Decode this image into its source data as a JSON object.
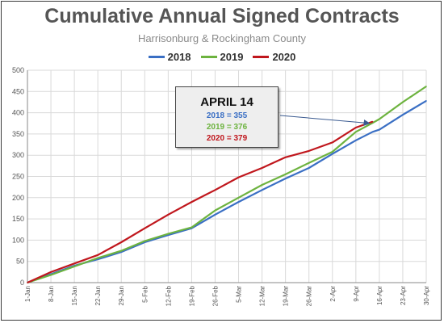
{
  "title": "Cumulative Annual Signed Contracts",
  "subtitle": "Harrisonburg & Rockingham County",
  "legend": [
    {
      "name": "2018",
      "color": "#3a6fc4"
    },
    {
      "name": "2019",
      "color": "#6db33f"
    },
    {
      "name": "2020",
      "color": "#c0171d"
    }
  ],
  "callout": {
    "title": "APRIL 14",
    "line_2018": "2018 = 355",
    "line_2019": "2019 = 376",
    "line_2020": "2020 = 379"
  },
  "chart_data": {
    "type": "line",
    "title": "Cumulative Annual Signed Contracts",
    "subtitle": "Harrisonburg & Rockingham County",
    "x_tick_labels": [
      "1-Jan",
      "8-Jan",
      "15-Jan",
      "22-Jan",
      "29-Jan",
      "5-Feb",
      "12-Feb",
      "19-Feb",
      "26-Feb",
      "5-Mar",
      "12-Mar",
      "19-Mar",
      "26-Mar",
      "2-Apr",
      "9-Apr",
      "16-Apr",
      "23-Apr",
      "30-Apr"
    ],
    "ylim": [
      0,
      500
    ],
    "y_ticks": [
      0,
      50,
      100,
      150,
      200,
      250,
      300,
      350,
      400,
      450,
      500
    ],
    "grid": true,
    "legend_position": "top",
    "series": [
      {
        "name": "2018",
        "color": "#3a6fc4",
        "x": [
          "1-Jan",
          "8-Jan",
          "15-Jan",
          "22-Jan",
          "29-Jan",
          "5-Feb",
          "12-Feb",
          "19-Feb",
          "26-Feb",
          "5-Mar",
          "12-Mar",
          "19-Mar",
          "26-Mar",
          "2-Apr",
          "9-Apr",
          "14-Apr",
          "16-Apr",
          "23-Apr",
          "30-Apr"
        ],
        "values": [
          0,
          20,
          40,
          55,
          72,
          95,
          112,
          128,
          160,
          190,
          218,
          245,
          270,
          303,
          335,
          355,
          360,
          395,
          428
        ]
      },
      {
        "name": "2019",
        "color": "#6db33f",
        "x": [
          "1-Jan",
          "8-Jan",
          "15-Jan",
          "22-Jan",
          "29-Jan",
          "5-Feb",
          "12-Feb",
          "19-Feb",
          "26-Feb",
          "5-Mar",
          "12-Mar",
          "19-Mar",
          "26-Mar",
          "2-Apr",
          "9-Apr",
          "14-Apr",
          "16-Apr",
          "23-Apr",
          "30-Apr"
        ],
        "values": [
          0,
          18,
          38,
          58,
          75,
          98,
          115,
          130,
          170,
          200,
          230,
          255,
          282,
          308,
          355,
          376,
          385,
          425,
          462
        ]
      },
      {
        "name": "2020",
        "color": "#c0171d",
        "x": [
          "1-Jan",
          "8-Jan",
          "15-Jan",
          "22-Jan",
          "29-Jan",
          "5-Feb",
          "12-Feb",
          "19-Feb",
          "26-Feb",
          "5-Mar",
          "12-Mar",
          "19-Mar",
          "26-Mar",
          "2-Apr",
          "9-Apr",
          "14-Apr"
        ],
        "values": [
          0,
          25,
          45,
          65,
          95,
          128,
          160,
          190,
          218,
          248,
          270,
          295,
          310,
          330,
          365,
          379
        ]
      }
    ],
    "annotation": {
      "x": "14-Apr",
      "text": [
        "APRIL 14",
        "2018 = 355",
        "2019 = 376",
        "2020 = 379"
      ],
      "arrow_target_value": 379
    }
  }
}
